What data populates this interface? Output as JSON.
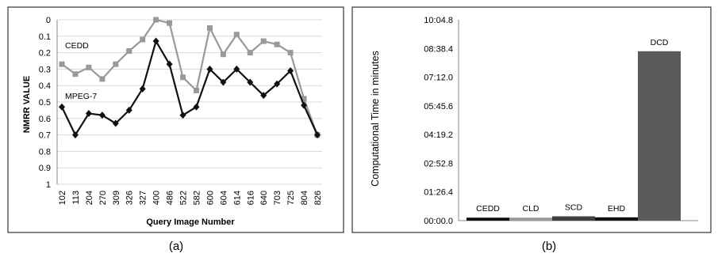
{
  "chart_data": [
    {
      "panel": "(a)",
      "type": "line",
      "xlabel": "Query Image Number",
      "ylabel": "NMRR VALUE",
      "y_inverted": true,
      "ylim": [
        0,
        1
      ],
      "yticks": [
        "0",
        "0.1",
        "0.2",
        "0.3",
        "0.4",
        "0.5",
        "0.6",
        "0.7",
        "0.8",
        "0.9",
        "1"
      ],
      "grid": true,
      "categories": [
        "102",
        "113",
        "204",
        "270",
        "309",
        "326",
        "327",
        "400",
        "486",
        "522",
        "582",
        "600",
        "604",
        "614",
        "616",
        "640",
        "703",
        "725",
        "804",
        "826"
      ],
      "series": [
        {
          "name": "CEDD",
          "color": "#999999",
          "marker": "square",
          "values": [
            0.27,
            0.33,
            0.29,
            0.36,
            0.27,
            0.19,
            0.12,
            0.0,
            0.02,
            0.35,
            0.43,
            0.05,
            0.21,
            0.09,
            0.2,
            0.13,
            0.15,
            0.2,
            0.48,
            0.7
          ]
        },
        {
          "name": "MPEG-7",
          "color": "#111111",
          "marker": "diamond",
          "values": [
            0.53,
            0.7,
            0.57,
            0.58,
            0.63,
            0.55,
            0.42,
            0.13,
            0.27,
            0.58,
            0.53,
            0.3,
            0.38,
            0.3,
            0.38,
            0.46,
            0.39,
            0.31,
            0.52,
            0.7
          ]
        }
      ]
    },
    {
      "panel": "(b)",
      "type": "bar",
      "ylabel": "Computational Time in minutes",
      "ylim_seconds": [
        0,
        604.8
      ],
      "yticks": [
        "00:00.0",
        "01:26.4",
        "02:52.8",
        "04:19.2",
        "05:45.6",
        "07:12.0",
        "08:38.4",
        "10:04.8"
      ],
      "categories": [
        "CEDD",
        "CLD",
        "SCD",
        "EHD",
        "DCD"
      ],
      "values_seconds": [
        9,
        9,
        13,
        10,
        510
      ],
      "colors": [
        "#111111",
        "#9a9a9a",
        "#404040",
        "#111111",
        "#5a5a5a"
      ]
    }
  ],
  "captions": {
    "a": "(a)",
    "b": "(b)"
  }
}
